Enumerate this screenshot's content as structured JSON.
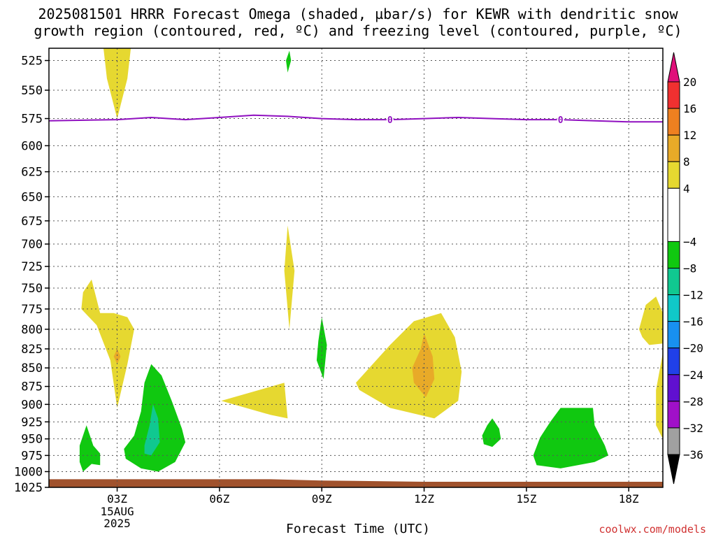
{
  "title": {
    "line1": "2025081501 HRRR Forecast Omega (shaded, µbar/s) for KEWR with dendritic snow",
    "line2": "growth region (contoured, red, ºC) and freezing level (contoured, purple, ºC)"
  },
  "credit": "coolwx.com/models",
  "chart_data": {
    "type": "contour",
    "title": "2025081501 HRRR Forecast Omega (shaded, µbar/s) for KEWR with dendritic snow growth region (contoured, red, ºC) and freezing level (contoured, purple, ºC)",
    "xlabel": "Forecast Time (UTC)",
    "ylabel": "",
    "x_range_hours": [
      1,
      19
    ],
    "x_ticks": [
      {
        "hour": 3,
        "label": "03Z",
        "sub": [
          "15AUG",
          "2025"
        ]
      },
      {
        "hour": 6,
        "label": "06Z"
      },
      {
        "hour": 9,
        "label": "09Z"
      },
      {
        "hour": 12,
        "label": "12Z"
      },
      {
        "hour": 15,
        "label": "15Z"
      },
      {
        "hour": 18,
        "label": "18Z"
      }
    ],
    "y_axis": {
      "scale": "log-pressure",
      "range_hPa": [
        1025,
        515
      ],
      "inverted": true
    },
    "y_ticks": [
      525,
      550,
      575,
      600,
      625,
      650,
      675,
      700,
      725,
      750,
      775,
      800,
      825,
      850,
      875,
      900,
      925,
      950,
      975,
      1000,
      1025
    ],
    "grid": true,
    "colorbar": {
      "labels": [
        "20",
        "16",
        "12",
        "8",
        "4",
        "−4",
        "−8",
        "−12",
        "−16",
        "−20",
        "−24",
        "−28",
        "−32",
        "−36"
      ],
      "bands": [
        {
          "from": 16,
          "to": 20,
          "color": "#f03030"
        },
        {
          "from": 12,
          "to": 16,
          "color": "#ee8020"
        },
        {
          "from": 8,
          "to": 12,
          "color": "#e8aa28"
        },
        {
          "from": 4,
          "to": 8,
          "color": "#e6d830"
        },
        {
          "from": -4,
          "to": 4,
          "color": "#ffffff"
        },
        {
          "from": -8,
          "to": -4,
          "color": "#10c810"
        },
        {
          "from": -12,
          "to": -8,
          "color": "#10c890"
        },
        {
          "from": -16,
          "to": -12,
          "color": "#10c8c8"
        },
        {
          "from": -20,
          "to": -16,
          "color": "#1890f0"
        },
        {
          "from": -24,
          "to": -20,
          "color": "#2040e8"
        },
        {
          "from": -28,
          "to": -24,
          "color": "#6010d0"
        },
        {
          "from": -32,
          "to": -28,
          "color": "#a010c8"
        },
        {
          "from": -36,
          "to": -32,
          "color": "#a0a0a0"
        }
      ],
      "top_arrow_color": "#e0107a",
      "bottom_arrow_color": "#000000"
    },
    "freezing_level": {
      "value_label": "0",
      "color": "#9010c0",
      "points": [
        [
          1,
          577
        ],
        [
          3,
          576
        ],
        [
          4,
          574
        ],
        [
          5,
          576
        ],
        [
          6,
          574
        ],
        [
          7,
          572
        ],
        [
          8,
          573
        ],
        [
          9,
          575
        ],
        [
          10,
          576
        ],
        [
          11,
          576
        ],
        [
          12,
          575
        ],
        [
          13,
          574
        ],
        [
          14,
          575
        ],
        [
          15,
          576
        ],
        [
          16,
          576
        ],
        [
          17,
          577
        ],
        [
          18,
          578
        ],
        [
          19,
          578
        ]
      ],
      "label_hours": [
        11,
        16
      ]
    },
    "terrain": {
      "color": "#a0522d",
      "top_hPa": [
        [
          1,
          1012
        ],
        [
          7.5,
          1012
        ],
        [
          9,
          1014
        ],
        [
          12,
          1016
        ],
        [
          19,
          1016
        ]
      ]
    },
    "omega_regions": [
      {
        "color": "#e6d830",
        "points": [
          [
            2.6,
            515
          ],
          [
            3.4,
            515
          ],
          [
            3.3,
            540
          ],
          [
            3.0,
            575
          ],
          [
            2.7,
            540
          ]
        ]
      },
      {
        "color": "#e6d830",
        "points": [
          [
            2.0,
            755
          ],
          [
            2.25,
            740
          ],
          [
            2.5,
            780
          ],
          [
            2.9,
            780
          ],
          [
            3.3,
            785
          ],
          [
            3.5,
            800
          ],
          [
            3.3,
            845
          ],
          [
            3.0,
            905
          ],
          [
            2.8,
            840
          ],
          [
            2.4,
            795
          ],
          [
            1.95,
            775
          ]
        ]
      },
      {
        "color": "#e8aa28",
        "points": [
          [
            3.0,
            825
          ],
          [
            3.1,
            835
          ],
          [
            3.0,
            845
          ],
          [
            2.9,
            835
          ]
        ]
      },
      {
        "color": "#e6d830",
        "points": [
          [
            8.0,
            680
          ],
          [
            8.2,
            730
          ],
          [
            8.05,
            800
          ],
          [
            7.9,
            730
          ]
        ]
      },
      {
        "color": "#e6d830",
        "points": [
          [
            6.05,
            895
          ],
          [
            7.9,
            870
          ],
          [
            8.0,
            920
          ],
          [
            7.5,
            915
          ]
        ]
      },
      {
        "color": "#e6d830",
        "points": [
          [
            10.0,
            870
          ],
          [
            11.0,
            820
          ],
          [
            11.7,
            790
          ],
          [
            12.5,
            780
          ],
          [
            12.9,
            810
          ],
          [
            13.1,
            855
          ],
          [
            13.0,
            895
          ],
          [
            12.3,
            920
          ],
          [
            11.0,
            905
          ],
          [
            10.1,
            880
          ]
        ]
      },
      {
        "color": "#e8aa28",
        "points": [
          [
            11.65,
            850
          ],
          [
            11.9,
            825
          ],
          [
            12.0,
            805
          ],
          [
            12.25,
            835
          ],
          [
            12.3,
            865
          ],
          [
            12.05,
            890
          ],
          [
            11.7,
            870
          ]
        ]
      },
      {
        "color": "#e6d830",
        "points": [
          [
            18.3,
            800
          ],
          [
            18.5,
            770
          ],
          [
            18.8,
            760
          ],
          [
            19.0,
            780
          ],
          [
            19.0,
            818
          ],
          [
            18.6,
            820
          ],
          [
            18.4,
            810
          ]
        ]
      },
      {
        "color": "#e6d830",
        "points": [
          [
            19.0,
            830
          ],
          [
            19.0,
            950
          ],
          [
            18.8,
            930
          ],
          [
            18.8,
            880
          ]
        ]
      },
      {
        "color": "#10c810",
        "points": [
          [
            8.05,
            517
          ],
          [
            8.1,
            525
          ],
          [
            8.0,
            535
          ],
          [
            7.95,
            525
          ]
        ]
      },
      {
        "color": "#10c810",
        "points": [
          [
            8.9,
            815
          ],
          [
            9.0,
            785
          ],
          [
            9.15,
            820
          ],
          [
            9.05,
            865
          ],
          [
            8.85,
            840
          ]
        ]
      },
      {
        "color": "#10c810",
        "points": [
          [
            1.9,
            960
          ],
          [
            2.1,
            930
          ],
          [
            2.3,
            960
          ],
          [
            2.5,
            972
          ],
          [
            2.5,
            990
          ],
          [
            2.25,
            988
          ],
          [
            2.0,
            1000
          ],
          [
            1.9,
            985
          ]
        ]
      },
      {
        "color": "#10c810",
        "points": [
          [
            3.2,
            965
          ],
          [
            3.5,
            945
          ],
          [
            3.7,
            910
          ],
          [
            3.8,
            870
          ],
          [
            4.0,
            845
          ],
          [
            4.3,
            860
          ],
          [
            4.6,
            895
          ],
          [
            4.9,
            935
          ],
          [
            5.0,
            955
          ],
          [
            4.7,
            985
          ],
          [
            4.2,
            1000
          ],
          [
            3.7,
            995
          ],
          [
            3.25,
            980
          ]
        ]
      },
      {
        "color": "#10c890",
        "points": [
          [
            3.8,
            960
          ],
          [
            3.95,
            930
          ],
          [
            4.05,
            900
          ],
          [
            4.2,
            920
          ],
          [
            4.25,
            955
          ],
          [
            4.0,
            975
          ],
          [
            3.8,
            972
          ]
        ]
      },
      {
        "color": "#10c810",
        "points": [
          [
            13.7,
            945
          ],
          [
            13.85,
            930
          ],
          [
            14.0,
            920
          ],
          [
            14.2,
            935
          ],
          [
            14.25,
            950
          ],
          [
            14.0,
            962
          ],
          [
            13.75,
            958
          ]
        ]
      },
      {
        "color": "#10c810",
        "points": [
          [
            15.2,
            975
          ],
          [
            15.4,
            948
          ],
          [
            15.7,
            925
          ],
          [
            16.0,
            905
          ],
          [
            16.5,
            905
          ],
          [
            16.95,
            905
          ],
          [
            17.0,
            930
          ],
          [
            17.3,
            960
          ],
          [
            17.4,
            975
          ],
          [
            17.0,
            985
          ],
          [
            16.0,
            995
          ],
          [
            15.3,
            990
          ]
        ]
      }
    ]
  }
}
